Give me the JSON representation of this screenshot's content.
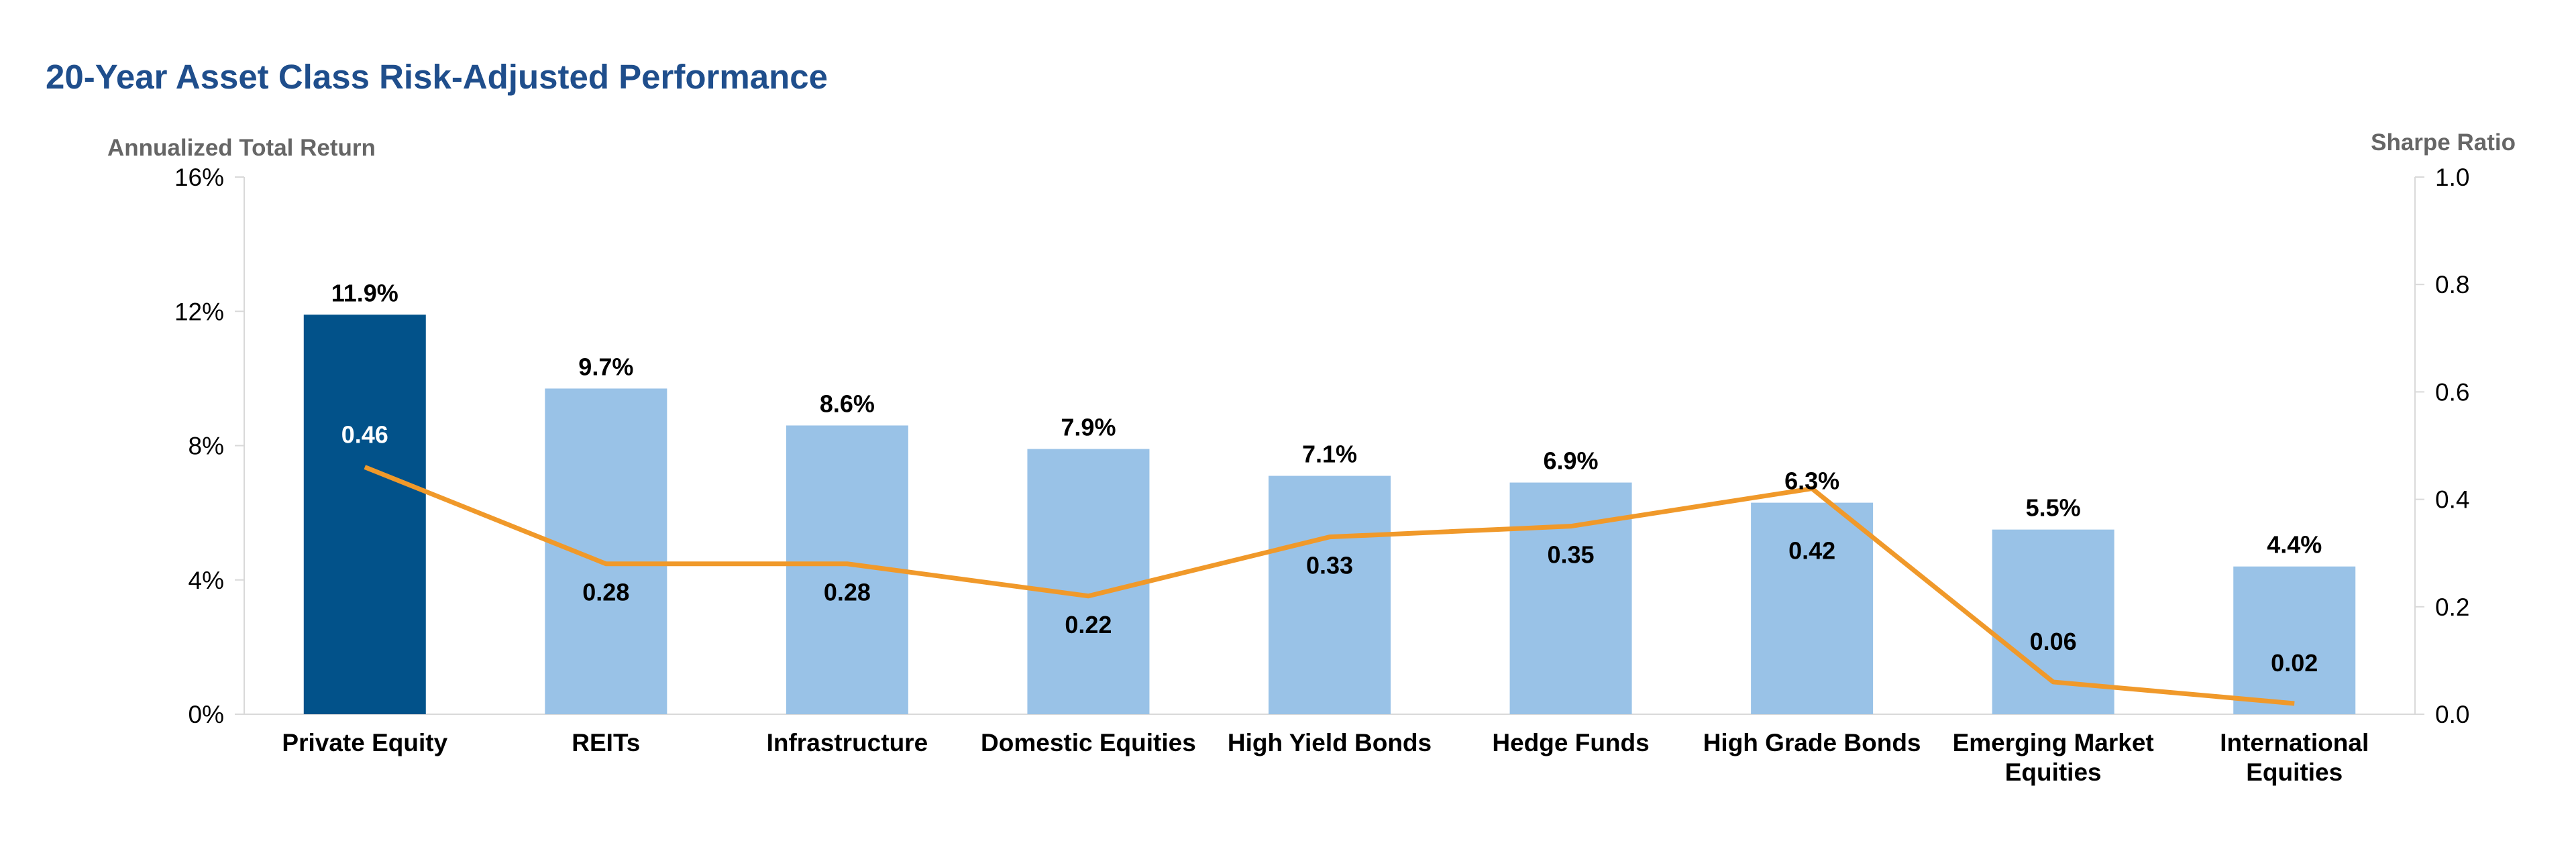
{
  "chart_data": {
    "type": "bar",
    "title": "20-Year Asset Class Risk-Adjusted Performance",
    "ylabel": "Annualized Total Return",
    "y2label": "Sharpe Ratio",
    "ylim": [
      0,
      16
    ],
    "y2lim": [
      0,
      1.0
    ],
    "yticks": [
      "0%",
      "4%",
      "8%",
      "12%",
      "16%"
    ],
    "y2ticks": [
      "0.0",
      "0.2",
      "0.4",
      "0.6",
      "0.8",
      "1.0"
    ],
    "grid": false,
    "categories": [
      [
        "Private Equity"
      ],
      [
        "REITs"
      ],
      [
        "Infrastructure"
      ],
      [
        "Domestic Equities"
      ],
      [
        "High Yield Bonds"
      ],
      [
        "Hedge Funds"
      ],
      [
        "High Grade Bonds"
      ],
      [
        "Emerging Market",
        "Equities"
      ],
      [
        "International",
        "Equities"
      ]
    ],
    "series": [
      {
        "type": "bar",
        "axis": "left",
        "values": [
          11.9,
          9.7,
          8.6,
          7.9,
          7.1,
          6.9,
          6.3,
          5.5,
          4.4
        ],
        "labels": [
          "11.9%",
          "9.7%",
          "8.6%",
          "7.9%",
          "7.1%",
          "6.9%",
          "6.3%",
          "5.5%",
          "4.4%"
        ],
        "color": "#99c2e7",
        "highlight_color": "#02528a",
        "highlight_index": 0
      },
      {
        "type": "line",
        "axis": "right",
        "values": [
          0.46,
          0.28,
          0.28,
          0.22,
          0.33,
          0.35,
          0.42,
          0.06,
          0.02
        ],
        "labels": [
          "0.46",
          "0.28",
          "0.28",
          "0.22",
          "0.33",
          "0.35",
          "0.42",
          "0.06",
          "0.02"
        ],
        "color": "#f0992a"
      }
    ]
  }
}
